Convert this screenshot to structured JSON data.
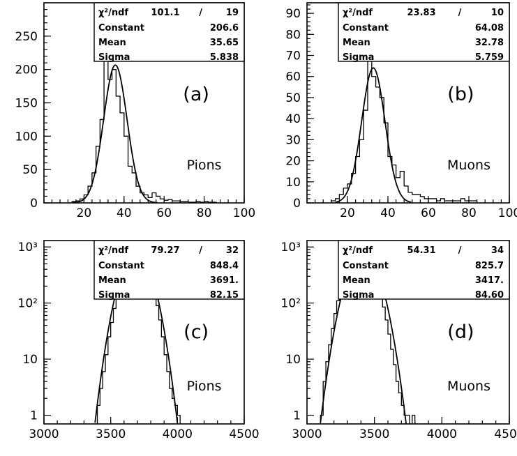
{
  "chart_data": [
    {
      "id": "a",
      "type": "histogram",
      "panel_label": "(a)",
      "particle_label": "Pions",
      "x_scale": "linear",
      "y_scale": "linear",
      "xlim": [
        0,
        100
      ],
      "ylim": [
        0,
        300
      ],
      "xticks": [
        20,
        40,
        60,
        80,
        100
      ],
      "xtick_labels": [
        "20",
        "40",
        "60",
        "80",
        "100"
      ],
      "yticks": [
        0,
        50,
        100,
        150,
        200,
        250
      ],
      "ytick_labels": [
        "0",
        "50",
        "100",
        "150",
        "200",
        "250"
      ],
      "stats": {
        "chi2_label": "χ²/ndf",
        "chi2": "101.1",
        "ndf": "19",
        "rows": [
          {
            "label": "Constant",
            "value": "206.6"
          },
          {
            "label": "Mean",
            "value": "35.65"
          },
          {
            "label": "Sigma",
            "value": "5.838"
          }
        ]
      },
      "fit": {
        "constant": 206.6,
        "mean": 35.65,
        "sigma": 5.838
      },
      "histogram": {
        "bin_edges": [
          14,
          16,
          18,
          20,
          22,
          24,
          26,
          28,
          30,
          32,
          34,
          36,
          38,
          40,
          42,
          44,
          46,
          48,
          50,
          52,
          54,
          56,
          58,
          60,
          62,
          64,
          66,
          68,
          70,
          72,
          74,
          76,
          78,
          80,
          82,
          84,
          86
        ],
        "counts": [
          2,
          3,
          6,
          12,
          25,
          45,
          85,
          125,
          245,
          185,
          200,
          160,
          135,
          100,
          55,
          45,
          25,
          15,
          12,
          8,
          15,
          10,
          6,
          4,
          5,
          3,
          3,
          2,
          2,
          1,
          1,
          2,
          1,
          2,
          1,
          1
        ]
      }
    },
    {
      "id": "b",
      "type": "histogram",
      "panel_label": "(b)",
      "particle_label": "Muons",
      "x_scale": "linear",
      "y_scale": "linear",
      "xlim": [
        0,
        100
      ],
      "ylim": [
        0,
        95
      ],
      "xticks": [
        20,
        40,
        60,
        80,
        100
      ],
      "xtick_labels": [
        "20",
        "40",
        "60",
        "80",
        "100"
      ],
      "yticks": [
        0,
        10,
        20,
        30,
        40,
        50,
        60,
        70,
        80,
        90
      ],
      "ytick_labels": [
        "0",
        "10",
        "20",
        "30",
        "40",
        "50",
        "60",
        "70",
        "80",
        "90"
      ],
      "stats": {
        "chi2_label": "χ²/ndf",
        "chi2": "23.83",
        "ndf": "10",
        "rows": [
          {
            "label": "Constant",
            "value": "64.08"
          },
          {
            "label": "Mean",
            "value": "32.78"
          },
          {
            "label": "Sigma",
            "value": "5.759"
          }
        ]
      },
      "fit": {
        "constant": 64.08,
        "mean": 32.78,
        "sigma": 5.759
      },
      "histogram": {
        "bin_edges": [
          12,
          14,
          16,
          18,
          20,
          22,
          24,
          26,
          28,
          30,
          32,
          34,
          36,
          38,
          40,
          42,
          44,
          46,
          48,
          50,
          52,
          54,
          56,
          58,
          60,
          62,
          64,
          66,
          68,
          70,
          72,
          74,
          76,
          78,
          80,
          82,
          84
        ],
        "counts": [
          1,
          2,
          4,
          7,
          9,
          14,
          22,
          30,
          44,
          85,
          60,
          55,
          50,
          38,
          22,
          18,
          12,
          15,
          8,
          5,
          4,
          4,
          3,
          2,
          2,
          2,
          1,
          2,
          1,
          1,
          1,
          1,
          2,
          1,
          1,
          1
        ]
      }
    },
    {
      "id": "c",
      "type": "histogram",
      "panel_label": "(c)",
      "particle_label": "Pions",
      "x_scale": "linear",
      "y_scale": "log",
      "xlim": [
        3000,
        4500
      ],
      "ylim": [
        0.7,
        1300
      ],
      "xticks": [
        3000,
        3500,
        4000,
        4500
      ],
      "xtick_labels": [
        "3000",
        "3500",
        "4000",
        "4500"
      ],
      "yticks": [
        1,
        10,
        100,
        1000
      ],
      "ytick_labels": [
        "1",
        "10",
        "10²",
        "10³"
      ],
      "stats": {
        "chi2_label": "χ²/ndf",
        "chi2": "79.27",
        "ndf": "32",
        "rows": [
          {
            "label": "Constant",
            "value": "848.4"
          },
          {
            "label": "Mean",
            "value": "3691."
          },
          {
            "label": "Sigma",
            "value": "82.15"
          }
        ]
      },
      "fit": {
        "constant": 848.4,
        "mean": 3691,
        "sigma": 82.15
      },
      "histogram": {
        "bin_edges": [
          3400,
          3420,
          3440,
          3460,
          3480,
          3500,
          3520,
          3540,
          3560,
          3580,
          3600,
          3620,
          3640,
          3660,
          3680,
          3700,
          3720,
          3740,
          3760,
          3780,
          3800,
          3820,
          3840,
          3860,
          3880,
          3900,
          3920,
          3940,
          3960,
          3980,
          4000,
          4020
        ],
        "counts": [
          1.5,
          3,
          6,
          12,
          25,
          45,
          80,
          140,
          230,
          370,
          520,
          680,
          800,
          850,
          860,
          830,
          760,
          640,
          500,
          360,
          240,
          150,
          90,
          50,
          25,
          12,
          6,
          3,
          2,
          1.5,
          1
        ]
      }
    },
    {
      "id": "d",
      "type": "histogram",
      "panel_label": "(d)",
      "particle_label": "Muons",
      "x_scale": "linear",
      "y_scale": "log",
      "xlim": [
        3000,
        4500
      ],
      "ylim": [
        0.7,
        1300
      ],
      "xticks": [
        3000,
        3500,
        4000,
        4500
      ],
      "xtick_labels": [
        "3000",
        "3500",
        "4000",
        "4500"
      ],
      "yticks": [
        1,
        10,
        100,
        1000
      ],
      "ytick_labels": [
        "1",
        "10",
        "10²",
        "10³"
      ],
      "stats": {
        "chi2_label": "χ²/ndf",
        "chi2": "54.31",
        "ndf": "34",
        "rows": [
          {
            "label": "Constant",
            "value": "825.7"
          },
          {
            "label": "Mean",
            "value": "3417."
          },
          {
            "label": "Sigma",
            "value": "84.60"
          }
        ]
      },
      "fit": {
        "constant": 825.7,
        "mean": 3417,
        "sigma": 84.6
      },
      "histogram": {
        "bin_edges": [
          3100,
          3120,
          3140,
          3160,
          3180,
          3200,
          3220,
          3240,
          3260,
          3280,
          3300,
          3320,
          3340,
          3360,
          3380,
          3400,
          3420,
          3440,
          3460,
          3480,
          3500,
          3520,
          3540,
          3560,
          3580,
          3600,
          3620,
          3640,
          3660,
          3680,
          3700,
          3720,
          3740,
          3760,
          3780,
          3800
        ],
        "counts": [
          1,
          4,
          9,
          18,
          35,
          65,
          110,
          180,
          270,
          380,
          510,
          640,
          740,
          800,
          830,
          810,
          760,
          670,
          560,
          440,
          320,
          220,
          140,
          85,
          50,
          28,
          15,
          8,
          4,
          2.5,
          1.5,
          1,
          1,
          0,
          1
        ]
      }
    }
  ]
}
